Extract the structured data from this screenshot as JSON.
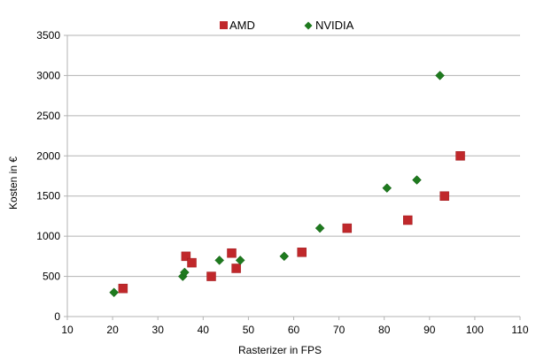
{
  "chart_data": {
    "type": "scatter",
    "title": "",
    "xlabel": "Rasterizer in FPS",
    "ylabel": "Kosten in €",
    "xlim": [
      10,
      110
    ],
    "ylim": [
      0,
      3500
    ],
    "xticks": [
      10,
      20,
      30,
      40,
      50,
      60,
      70,
      80,
      90,
      100,
      110
    ],
    "yticks": [
      0,
      500,
      1000,
      1500,
      2000,
      2500,
      3000,
      3500
    ],
    "xtick_labels": [
      "10",
      "20",
      "30",
      "40",
      "50",
      "60",
      "70",
      "80",
      "90",
      "100",
      "110"
    ],
    "ytick_labels": [
      "0",
      "500",
      "1000",
      "1500",
      "2000",
      "2500",
      "3000",
      "3500"
    ],
    "grid": "horizontal",
    "legend_position": "top-center",
    "series": [
      {
        "name": "AMD",
        "marker": "square",
        "color": "#c0282b",
        "points": [
          {
            "x": 22.3,
            "y": 350
          },
          {
            "x": 36.2,
            "y": 750
          },
          {
            "x": 37.5,
            "y": 670
          },
          {
            "x": 41.8,
            "y": 500
          },
          {
            "x": 46.3,
            "y": 790
          },
          {
            "x": 47.3,
            "y": 600
          },
          {
            "x": 61.8,
            "y": 800
          },
          {
            "x": 71.8,
            "y": 1100
          },
          {
            "x": 85.2,
            "y": 1200
          },
          {
            "x": 93.3,
            "y": 1500
          },
          {
            "x": 96.8,
            "y": 2000
          }
        ]
      },
      {
        "name": "NVIDIA",
        "marker": "diamond",
        "color": "#1e7a1e",
        "points": [
          {
            "x": 20.3,
            "y": 300
          },
          {
            "x": 35.5,
            "y": 500
          },
          {
            "x": 35.9,
            "y": 550
          },
          {
            "x": 43.6,
            "y": 700
          },
          {
            "x": 48.2,
            "y": 700
          },
          {
            "x": 57.9,
            "y": 750
          },
          {
            "x": 65.8,
            "y": 1100
          },
          {
            "x": 80.6,
            "y": 1600
          },
          {
            "x": 87.2,
            "y": 1700
          },
          {
            "x": 92.3,
            "y": 3000
          }
        ]
      }
    ]
  }
}
